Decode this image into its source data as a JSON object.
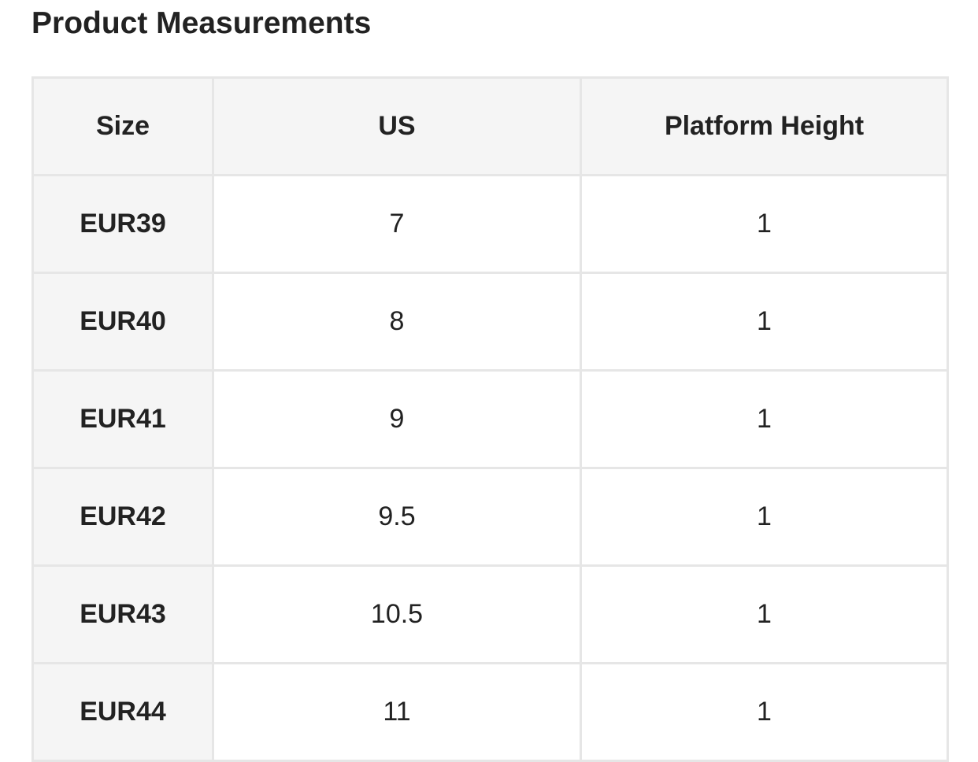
{
  "title": "Product Measurements",
  "table": {
    "headers": [
      "Size",
      "US",
      "Platform Height"
    ],
    "rows": [
      [
        "EUR39",
        "7",
        "1"
      ],
      [
        "EUR40",
        "8",
        "1"
      ],
      [
        "EUR41",
        "9",
        "1"
      ],
      [
        "EUR42",
        "9.5",
        "1"
      ],
      [
        "EUR43",
        "10.5",
        "1"
      ],
      [
        "EUR44",
        "11",
        "1"
      ]
    ]
  }
}
